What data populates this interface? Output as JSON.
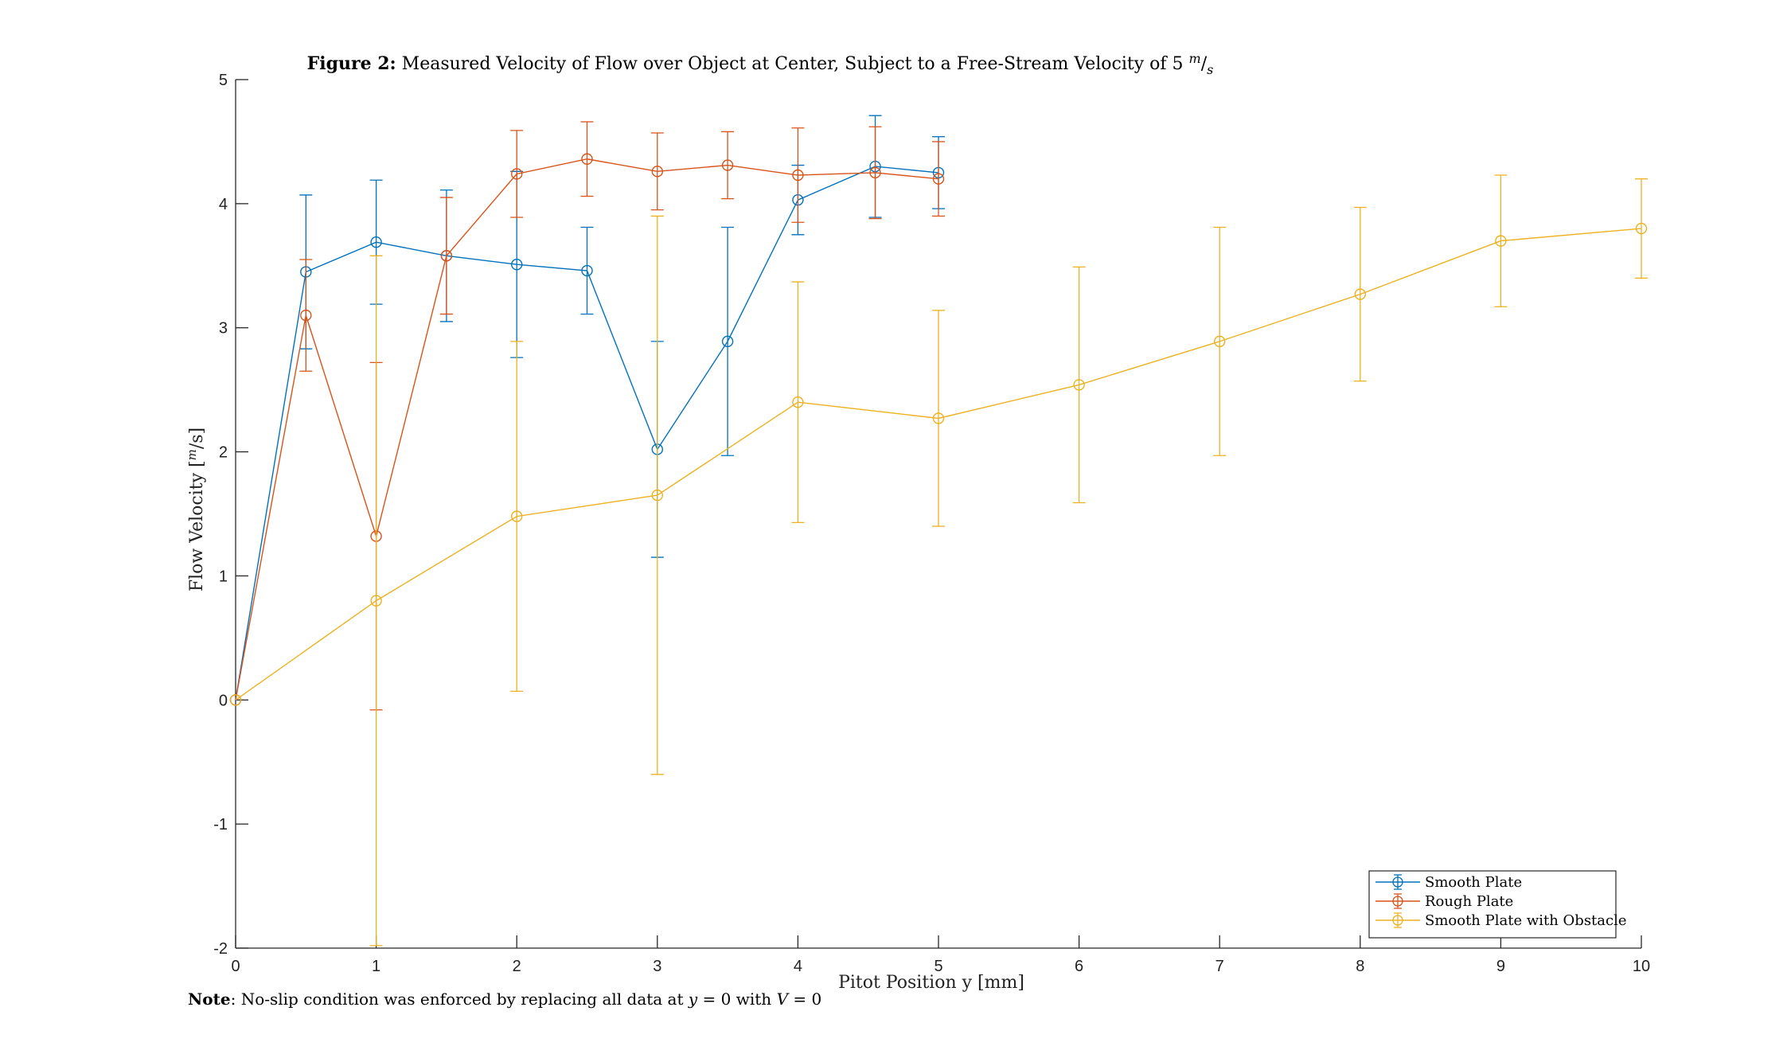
{
  "chart_data": {
    "type": "line",
    "title_bold": "Figure 2:",
    "title_rest": "Measured Velocity of Flow over Object at Center, Subject to a Free-Stream Velocity of 5",
    "title_unit_m": "m",
    "title_unit_sep": "/",
    "title_unit_s": "s",
    "xlabel": "Pitot Position y [mm]",
    "ylabel_main": "Flow Velocity [",
    "ylabel_m": "m",
    "ylabel_rest": "/s]",
    "xlim": [
      0,
      10
    ],
    "ylim": [
      -2,
      5
    ],
    "xticks": [
      0,
      1,
      2,
      3,
      4,
      5,
      6,
      7,
      8,
      9,
      10
    ],
    "yticks": [
      -2,
      -1,
      0,
      1,
      2,
      3,
      4,
      5
    ],
    "grid": false,
    "legend_position": "bottom-right",
    "series": [
      {
        "name": "Smooth Plate",
        "color": "#0072BD",
        "points": [
          {
            "x": 0,
            "y": 0,
            "err": 0
          },
          {
            "x": 0.5,
            "y": 3.45,
            "err": 0.62
          },
          {
            "x": 1,
            "y": 3.69,
            "err": 0.5
          },
          {
            "x": 1.5,
            "y": 3.58,
            "err": 0.53
          },
          {
            "x": 2,
            "y": 3.51,
            "err": 0.75
          },
          {
            "x": 2.5,
            "y": 3.46,
            "err": 0.35
          },
          {
            "x": 3,
            "y": 2.02,
            "err": 0.87
          },
          {
            "x": 3.5,
            "y": 2.89,
            "err": 0.92
          },
          {
            "x": 4,
            "y": 4.03,
            "err": 0.28
          },
          {
            "x": 4.55,
            "y": 4.3,
            "err": 0.41
          },
          {
            "x": 5,
            "y": 4.25,
            "err": 0.29
          }
        ]
      },
      {
        "name": "Rough Plate",
        "color": "#D95319",
        "points": [
          {
            "x": 0,
            "y": 0,
            "err": 0
          },
          {
            "x": 0.5,
            "y": 3.1,
            "err": 0.45
          },
          {
            "x": 1,
            "y": 1.32,
            "err": 1.4
          },
          {
            "x": 1.5,
            "y": 3.58,
            "err": 0.47
          },
          {
            "x": 2,
            "y": 4.24,
            "err": 0.35
          },
          {
            "x": 2.5,
            "y": 4.36,
            "err": 0.3
          },
          {
            "x": 3,
            "y": 4.26,
            "err": 0.31
          },
          {
            "x": 3.5,
            "y": 4.31,
            "err": 0.27
          },
          {
            "x": 4,
            "y": 4.23,
            "err": 0.38
          },
          {
            "x": 4.55,
            "y": 4.25,
            "err": 0.37
          },
          {
            "x": 5,
            "y": 4.2,
            "err": 0.3
          }
        ]
      },
      {
        "name": "Smooth Plate with Obstacle",
        "color": "#EDB120",
        "points": [
          {
            "x": 0,
            "y": 0,
            "err": 0
          },
          {
            "x": 1,
            "y": 0.8,
            "err": 2.78
          },
          {
            "x": 2,
            "y": 1.48,
            "err": 1.41
          },
          {
            "x": 3,
            "y": 1.65,
            "err": 2.25
          },
          {
            "x": 4,
            "y": 2.4,
            "err": 0.97
          },
          {
            "x": 5,
            "y": 2.27,
            "err": 0.87
          },
          {
            "x": 6,
            "y": 2.54,
            "err": 0.95
          },
          {
            "x": 7,
            "y": 2.89,
            "err": 0.92
          },
          {
            "x": 8,
            "y": 3.27,
            "err": 0.7
          },
          {
            "x": 9,
            "y": 3.7,
            "err": 0.53
          },
          {
            "x": 10,
            "y": 3.8,
            "err": 0.4
          }
        ]
      }
    ],
    "note_bold": "Note",
    "note_rest": ": No-slip condition was enforced by replacing all data at ",
    "note_y": "y",
    "note_eq1": " = 0 with ",
    "note_v": "V",
    "note_eq2": " = 0"
  }
}
